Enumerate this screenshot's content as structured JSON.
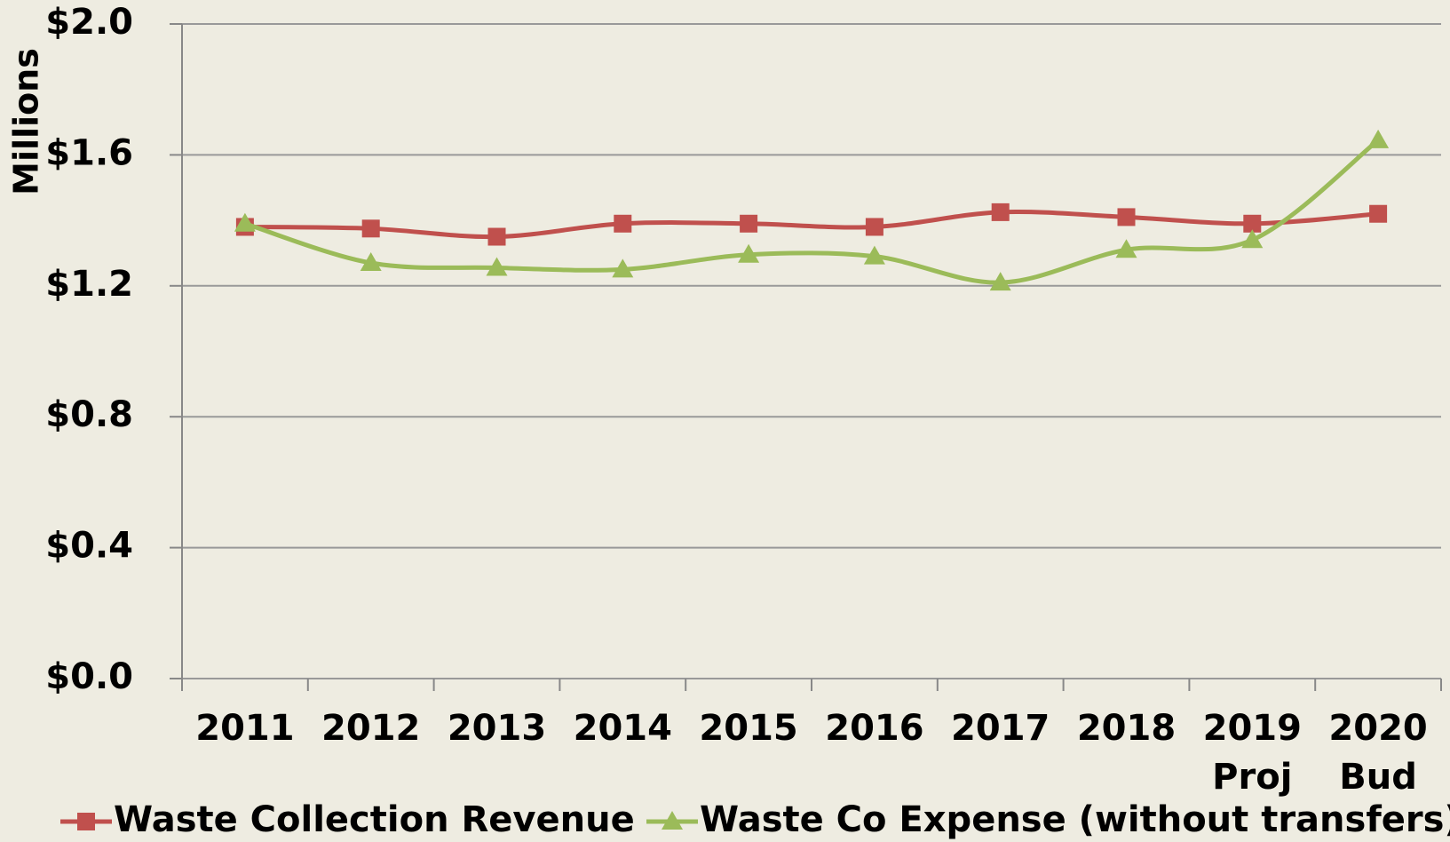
{
  "chart_data": {
    "type": "line",
    "y_label": "Millions",
    "categories": [
      "2011",
      "2012",
      "2013",
      "2014",
      "2015",
      "2016",
      "2017",
      "2018",
      "2019 Proj",
      "2020 Bud"
    ],
    "series": [
      {
        "name": "Waste Collection Revenue",
        "color": "#c0504d",
        "marker": "square",
        "values": [
          1.38,
          1.375,
          1.35,
          1.39,
          1.39,
          1.38,
          1.425,
          1.41,
          1.39,
          1.42
        ]
      },
      {
        "name": "Waste Co Expense (without transfers)",
        "color": "#9bbb59",
        "marker": "triangle",
        "values": [
          1.39,
          1.27,
          1.255,
          1.25,
          1.295,
          1.29,
          1.21,
          1.31,
          1.34,
          1.645
        ]
      }
    ],
    "ylim": [
      0,
      2.0
    ],
    "yticks": [
      {
        "value": 0,
        "label": "$0.0"
      },
      {
        "value": 0.4,
        "label": "$0.4"
      },
      {
        "value": 0.8,
        "label": "$0.8"
      },
      {
        "value": 1.2,
        "label": "$1.2"
      },
      {
        "value": 1.6,
        "label": "$1.6"
      },
      {
        "value": 2.0,
        "label": "$2.0"
      }
    ],
    "grid": true,
    "legend": "bottom",
    "smooth": true
  }
}
